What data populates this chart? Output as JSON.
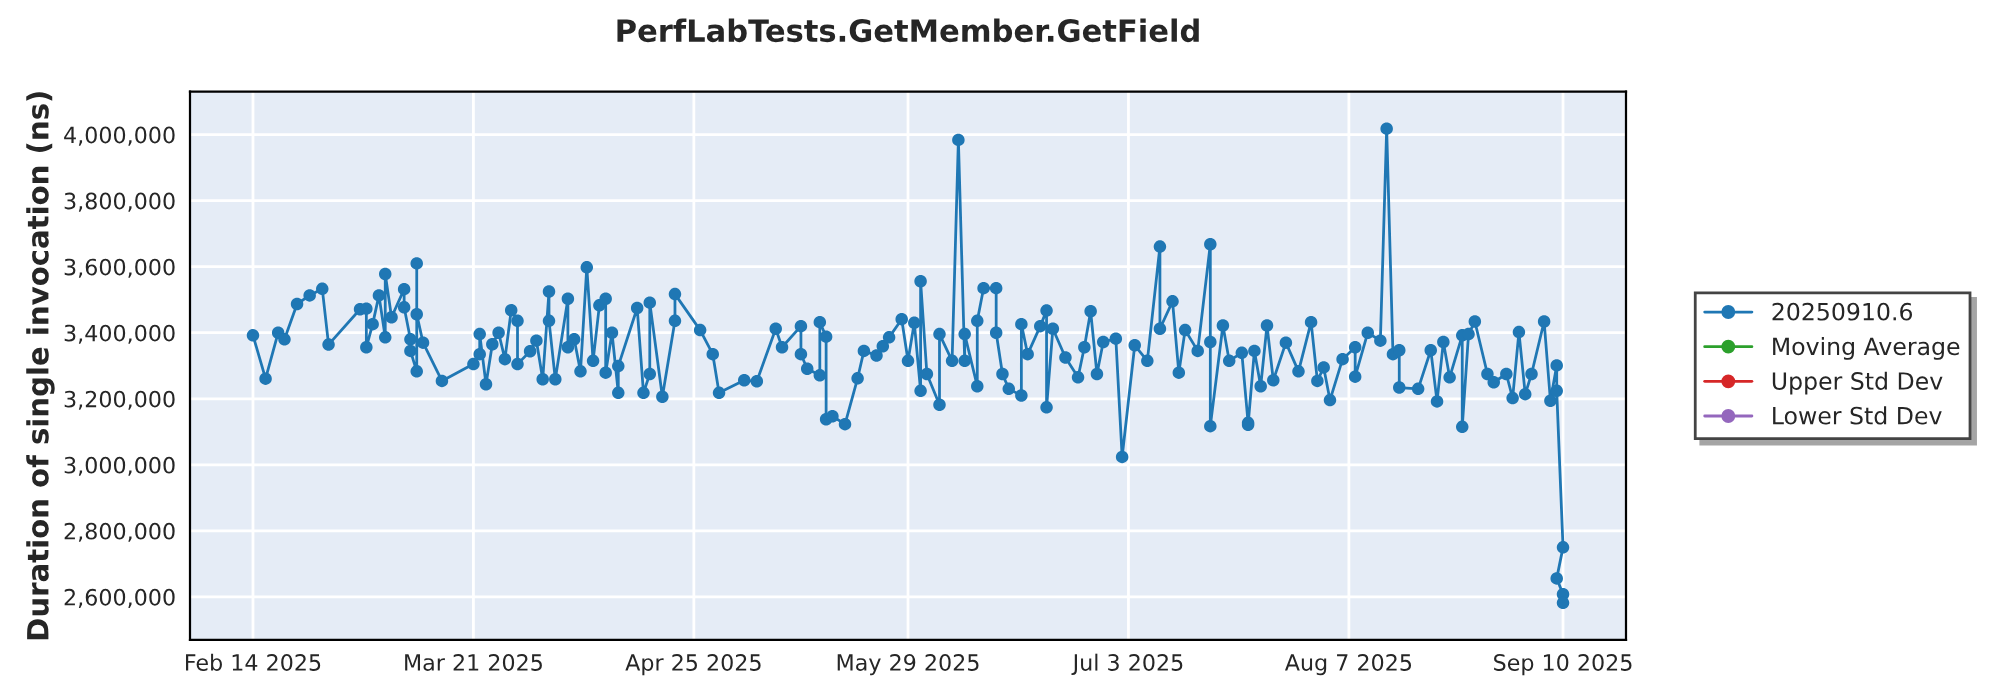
{
  "chart_data": {
    "type": "line",
    "title": "PerfLabTests.GetMember.GetField",
    "ylabel": "Duration of single invocation (ns)",
    "x": [
      "2025-02-14",
      "2025-02-16",
      "2025-02-18",
      "2025-02-19",
      "2025-02-21",
      "2025-02-23",
      "2025-02-25",
      "2025-02-26",
      "2025-03-03",
      "2025-03-04",
      "2025-03-04",
      "2025-03-05",
      "2025-03-06",
      "2025-03-07",
      "2025-03-07",
      "2025-03-08",
      "2025-03-10",
      "2025-03-10",
      "2025-03-11",
      "2025-03-11",
      "2025-03-12",
      "2025-03-12",
      "2025-03-12",
      "2025-03-13",
      "2025-03-16",
      "2025-03-21",
      "2025-03-22",
      "2025-03-22",
      "2025-03-23",
      "2025-03-24",
      "2025-03-25",
      "2025-03-26",
      "2025-03-27",
      "2025-03-28",
      "2025-03-28",
      "2025-03-30",
      "2025-03-31",
      "2025-04-01",
      "2025-04-02",
      "2025-04-02",
      "2025-04-03",
      "2025-04-05",
      "2025-04-05",
      "2025-04-06",
      "2025-04-07",
      "2025-04-08",
      "2025-04-09",
      "2025-04-10",
      "2025-04-11",
      "2025-04-11",
      "2025-04-12",
      "2025-04-13",
      "2025-04-13",
      "2025-04-16",
      "2025-04-17",
      "2025-04-18",
      "2025-04-18",
      "2025-04-20",
      "2025-04-22",
      "2025-04-22",
      "2025-04-26",
      "2025-04-28",
      "2025-04-29",
      "2025-05-03",
      "2025-05-05",
      "2025-05-08",
      "2025-05-09",
      "2025-05-12",
      "2025-05-12",
      "2025-05-13",
      "2025-05-15",
      "2025-05-15",
      "2025-05-16",
      "2025-05-16",
      "2025-05-17",
      "2025-05-19",
      "2025-05-21",
      "2025-05-22",
      "2025-05-24",
      "2025-05-25",
      "2025-05-26",
      "2025-05-28",
      "2025-05-29",
      "2025-05-30",
      "2025-05-31",
      "2025-05-31",
      "2025-06-01",
      "2025-06-03",
      "2025-06-03",
      "2025-06-05",
      "2025-06-06",
      "2025-06-07",
      "2025-06-07",
      "2025-06-09",
      "2025-06-09",
      "2025-06-10",
      "2025-06-12",
      "2025-06-12",
      "2025-06-13",
      "2025-06-14",
      "2025-06-16",
      "2025-06-16",
      "2025-06-17",
      "2025-06-19",
      "2025-06-20",
      "2025-06-20",
      "2025-06-21",
      "2025-06-23",
      "2025-06-25",
      "2025-06-26",
      "2025-06-27",
      "2025-06-28",
      "2025-06-29",
      "2025-07-01",
      "2025-07-02",
      "2025-07-04",
      "2025-07-06",
      "2025-07-08",
      "2025-07-08",
      "2025-07-10",
      "2025-07-11",
      "2025-07-12",
      "2025-07-14",
      "2025-07-16",
      "2025-07-16",
      "2025-07-16",
      "2025-07-18",
      "2025-07-19",
      "2025-07-21",
      "2025-07-22",
      "2025-07-22",
      "2025-07-23",
      "2025-07-24",
      "2025-07-25",
      "2025-07-26",
      "2025-07-28",
      "2025-07-30",
      "2025-08-01",
      "2025-08-02",
      "2025-08-03",
      "2025-08-04",
      "2025-08-06",
      "2025-08-08",
      "2025-08-08",
      "2025-08-10",
      "2025-08-12",
      "2025-08-13",
      "2025-08-14",
      "2025-08-15",
      "2025-08-15",
      "2025-08-18",
      "2025-08-20",
      "2025-08-21",
      "2025-08-22",
      "2025-08-23",
      "2025-08-25",
      "2025-08-25",
      "2025-08-26",
      "2025-08-27",
      "2025-08-29",
      "2025-08-30",
      "2025-09-01",
      "2025-09-02",
      "2025-09-03",
      "2025-09-04",
      "2025-09-05",
      "2025-09-07",
      "2025-09-08",
      "2025-09-09",
      "2025-09-09",
      "2025-09-10",
      "2025-09-09",
      "2025-09-10",
      "2025-09-10"
    ],
    "series": [
      {
        "name": "20250910.6",
        "color": "#1f77b4",
        "values": [
          3392000,
          3261000,
          3400000,
          3380000,
          3487000,
          3513000,
          3533000,
          3364000,
          3471000,
          3473000,
          3356000,
          3426000,
          3513000,
          3386000,
          3578000,
          3447000,
          3532000,
          3477000,
          3380000,
          3345000,
          3283000,
          3610000,
          3456000,
          3370000,
          3254000,
          3305000,
          3335000,
          3396000,
          3244000,
          3365000,
          3400000,
          3320000,
          3468000,
          3436000,
          3305000,
          3344000,
          3376000,
          3259000,
          3525000,
          3436000,
          3259000,
          3503000,
          3356000,
          3380000,
          3283000,
          3598000,
          3315000,
          3483000,
          3503000,
          3279000,
          3400000,
          3218000,
          3299000,
          3475000,
          3218000,
          3275000,
          3491000,
          3206000,
          3436000,
          3517000,
          3408000,
          3335000,
          3218000,
          3256000,
          3253000,
          3412000,
          3356000,
          3420000,
          3335000,
          3291000,
          3271000,
          3432000,
          3388000,
          3138000,
          3147000,
          3123000,
          3262000,
          3345000,
          3331000,
          3359000,
          3386000,
          3441000,
          3315000,
          3430000,
          3224000,
          3556000,
          3275000,
          3182000,
          3396000,
          3315000,
          3984000,
          3315000,
          3396000,
          3238000,
          3436000,
          3535000,
          3535000,
          3400000,
          3275000,
          3230000,
          3210000,
          3426000,
          3335000,
          3420000,
          3467000,
          3174000,
          3412000,
          3325000,
          3265000,
          3356000,
          3465000,
          3275000,
          3372000,
          3382000,
          3024000,
          3362000,
          3315000,
          3661000,
          3412000,
          3495000,
          3279000,
          3408000,
          3345000,
          3668000,
          3372000,
          3117000,
          3422000,
          3315000,
          3339000,
          3127000,
          3121000,
          3345000,
          3238000,
          3422000,
          3256000,
          3370000,
          3283000,
          3432000,
          3254000,
          3295000,
          3196000,
          3320000,
          3356000,
          3267000,
          3400000,
          3376000,
          4018000,
          3335000,
          3347000,
          3234000,
          3230000,
          3347000,
          3192000,
          3372000,
          3265000,
          3392000,
          3115000,
          3396000,
          3434000,
          3275000,
          3250000,
          3275000,
          3202000,
          3402000,
          3214000,
          3275000,
          3434000,
          3194000,
          3301000,
          3224000,
          2750000,
          2656000,
          2608000,
          2582000
        ]
      },
      {
        "name": "Moving Average",
        "color": "#2ca02c",
        "values": [
          null,
          null,
          null,
          null,
          null,
          null,
          null,
          null,
          null,
          null,
          null,
          null,
          null,
          null,
          null,
          null,
          null,
          null,
          null,
          null,
          null,
          null,
          null,
          null,
          null,
          null,
          null,
          null,
          null,
          null,
          null,
          null,
          null,
          null,
          null,
          null,
          null,
          null,
          null,
          null,
          null,
          null,
          null,
          null,
          null,
          null,
          null,
          null,
          null,
          null,
          null,
          null,
          null,
          null,
          null,
          null,
          null,
          null,
          null,
          null,
          null,
          null,
          null,
          null,
          null,
          null,
          null,
          null,
          null,
          null,
          null,
          null,
          null,
          null,
          null,
          null,
          null,
          null,
          null,
          null,
          null,
          null,
          null,
          null,
          null,
          null,
          null,
          null,
          null,
          null,
          null,
          null,
          null,
          null,
          null,
          null,
          null,
          null,
          null,
          null,
          null,
          null,
          null,
          null,
          null,
          null,
          null,
          null,
          null,
          null,
          null,
          null,
          null,
          null,
          null,
          null,
          null,
          null,
          null,
          null,
          null,
          null,
          null,
          null,
          null,
          null,
          null,
          null,
          null,
          null,
          null,
          null,
          null,
          null,
          null,
          null,
          null,
          null,
          null,
          null,
          null,
          null,
          null,
          null,
          null,
          null,
          null,
          null,
          null,
          null,
          null,
          null,
          null,
          null,
          null,
          null,
          null,
          null,
          null,
          null,
          null,
          null,
          null,
          null,
          null,
          null,
          null,
          null,
          null,
          null,
          null,
          null,
          null,
          null
        ]
      },
      {
        "name": "Upper Std Dev",
        "color": "#d62728",
        "values": [
          null,
          null,
          null,
          null,
          null,
          null,
          null,
          null,
          null,
          null,
          null,
          null,
          null,
          null,
          null,
          null,
          null,
          null,
          null,
          null,
          null,
          null,
          null,
          null,
          null,
          null,
          null,
          null,
          null,
          null,
          null,
          null,
          null,
          null,
          null,
          null,
          null,
          null,
          null,
          null,
          null,
          null,
          null,
          null,
          null,
          null,
          null,
          null,
          null,
          null,
          null,
          null,
          null,
          null,
          null,
          null,
          null,
          null,
          null,
          null,
          null,
          null,
          null,
          null,
          null,
          null,
          null,
          null,
          null,
          null,
          null,
          null,
          null,
          null,
          null,
          null,
          null,
          null,
          null,
          null,
          null,
          null,
          null,
          null,
          null,
          null,
          null,
          null,
          null,
          null,
          null,
          null,
          null,
          null,
          null,
          null,
          null,
          null,
          null,
          null,
          null,
          null,
          null,
          null,
          null,
          null,
          null,
          null,
          null,
          null,
          null,
          null,
          null,
          null,
          null,
          null,
          null,
          null,
          null,
          null,
          null,
          null,
          null,
          null,
          null,
          null,
          null,
          null,
          null,
          null,
          null,
          null,
          null,
          null,
          null,
          null,
          null,
          null,
          null,
          null,
          null,
          null,
          null,
          null,
          null,
          null,
          null,
          null,
          null,
          null,
          null,
          null,
          null,
          null,
          null,
          null,
          null,
          null,
          null,
          null,
          null,
          null,
          null,
          null,
          null,
          null,
          null,
          null,
          null,
          null,
          null,
          null,
          null,
          null
        ]
      },
      {
        "name": "Lower Std Dev",
        "color": "#9467bd",
        "values": [
          null,
          null,
          null,
          null,
          null,
          null,
          null,
          null,
          null,
          null,
          null,
          null,
          null,
          null,
          null,
          null,
          null,
          null,
          null,
          null,
          null,
          null,
          null,
          null,
          null,
          null,
          null,
          null,
          null,
          null,
          null,
          null,
          null,
          null,
          null,
          null,
          null,
          null,
          null,
          null,
          null,
          null,
          null,
          null,
          null,
          null,
          null,
          null,
          null,
          null,
          null,
          null,
          null,
          null,
          null,
          null,
          null,
          null,
          null,
          null,
          null,
          null,
          null,
          null,
          null,
          null,
          null,
          null,
          null,
          null,
          null,
          null,
          null,
          null,
          null,
          null,
          null,
          null,
          null,
          null,
          null,
          null,
          null,
          null,
          null,
          null,
          null,
          null,
          null,
          null,
          null,
          null,
          null,
          null,
          null,
          null,
          null,
          null,
          null,
          null,
          null,
          null,
          null,
          null,
          null,
          null,
          null,
          null,
          null,
          null,
          null,
          null,
          null,
          null,
          null,
          null,
          null,
          null,
          null,
          null,
          null,
          null,
          null,
          null,
          null,
          null,
          null,
          null,
          null,
          null,
          null,
          null,
          null,
          null,
          null,
          null,
          null,
          null,
          null,
          null,
          null,
          null,
          null,
          null,
          null,
          null,
          null,
          null,
          null,
          null,
          null,
          null,
          null,
          null,
          null,
          null,
          null,
          null,
          null,
          null,
          null,
          null,
          null,
          null,
          null,
          null,
          null,
          null,
          null,
          null,
          null,
          null,
          null,
          null
        ]
      }
    ],
    "xlim": [
      "2025-02-04",
      "2025-09-20"
    ],
    "xticks": [
      {
        "value": "2025-02-14",
        "label": "Feb 14 2025"
      },
      {
        "value": "2025-03-21",
        "label": "Mar 21 2025"
      },
      {
        "value": "2025-04-25",
        "label": "Apr 25 2025"
      },
      {
        "value": "2025-05-29",
        "label": "May 29 2025"
      },
      {
        "value": "2025-07-03",
        "label": "Jul 3 2025"
      },
      {
        "value": "2025-08-07",
        "label": "Aug 7 2025"
      },
      {
        "value": "2025-09-10",
        "label": "Sep 10 2025"
      }
    ],
    "ylim": [
      2470000,
      4130000
    ],
    "yticks": [
      {
        "value": 2600000,
        "label": "2,600,000"
      },
      {
        "value": 2800000,
        "label": "2,800,000"
      },
      {
        "value": 3000000,
        "label": "3,000,000"
      },
      {
        "value": 3200000,
        "label": "3,200,000"
      },
      {
        "value": 3400000,
        "label": "3,400,000"
      },
      {
        "value": 3600000,
        "label": "3,600,000"
      },
      {
        "value": 3800000,
        "label": "3,800,000"
      },
      {
        "value": 4000000,
        "label": "4,000,000"
      }
    ],
    "grid": true,
    "legend": "right",
    "marker": "circle",
    "line_style": "solid"
  }
}
